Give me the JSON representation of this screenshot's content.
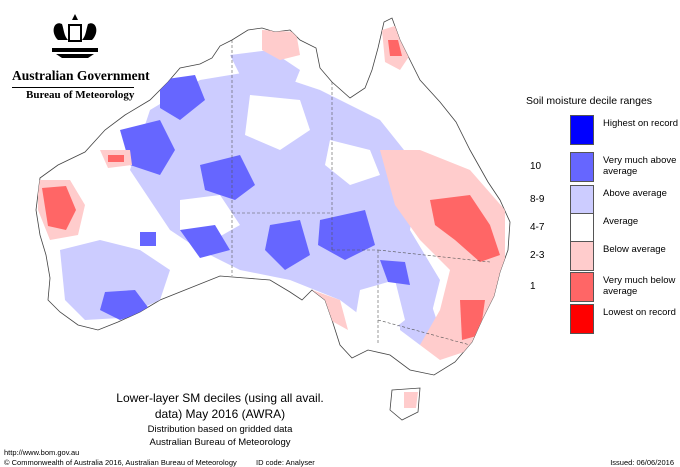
{
  "header": {
    "government": "Australian Government",
    "agency": "Bureau of Meteorology"
  },
  "legend": {
    "title": "Soil moisture decile ranges",
    "items": [
      {
        "range": "",
        "label": "Highest on record",
        "color": "#0000ff"
      },
      {
        "range": "10",
        "label": "Very much above average",
        "color": "#6666ff"
      },
      {
        "range": "8-9",
        "label": "Above average",
        "color": "#ccccff"
      },
      {
        "range": "4-7",
        "label": "Average",
        "color": "#ffffff"
      },
      {
        "range": "2-3",
        "label": "Below average",
        "color": "#ffcccc"
      },
      {
        "range": "1",
        "label": "Very much below average",
        "color": "#ff6666"
      },
      {
        "range": "",
        "label": "Lowest on record",
        "color": "#ff0000"
      }
    ]
  },
  "caption": {
    "title_line1": "Lower-layer SM deciles (using all avail.",
    "title_line2": "data) May 2016 (AWRA)",
    "subtitle_line1": "Distribution based on gridded data",
    "subtitle_line2": "Australian Bureau of Meteorology"
  },
  "footer": {
    "url": "http://www.bom.gov.au",
    "copyright": "© Commonwealth of Australia 2016, Australian Bureau of Meteorology",
    "id_code": "ID code: Analyser",
    "issued": "Issued: 06/06/2016"
  }
}
